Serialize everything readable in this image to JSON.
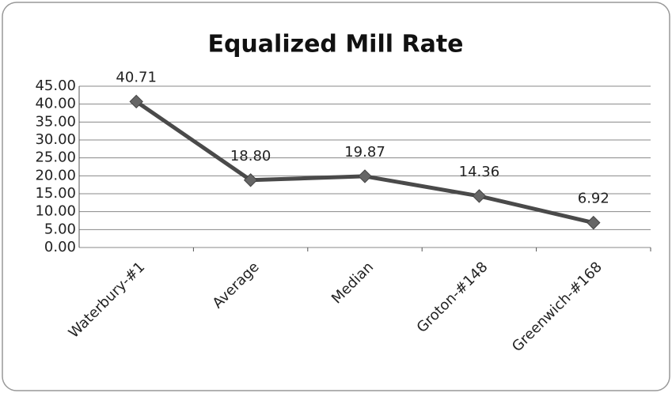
{
  "chart_data": {
    "type": "line",
    "title": "Equalized Mill Rate",
    "categories": [
      "Waterbury-#1",
      "Average",
      "Median",
      "Groton-#148",
      "Greenwich-#168"
    ],
    "values": [
      40.71,
      18.8,
      19.87,
      14.36,
      6.92
    ],
    "value_labels": [
      "40.71",
      "18.80",
      "19.87",
      "14.36",
      "6.92"
    ],
    "color": "#4a4a4a",
    "ylim": [
      0,
      45
    ],
    "yticks": [
      {
        "value": 0,
        "label": "0.00"
      },
      {
        "value": 5,
        "label": "5.00"
      },
      {
        "value": 10,
        "label": "10.00"
      },
      {
        "value": 15,
        "label": "15.00"
      },
      {
        "value": 20,
        "label": "20.00"
      },
      {
        "value": 25,
        "label": "25.00"
      },
      {
        "value": 30,
        "label": "30.00"
      },
      {
        "value": 35,
        "label": "35.00"
      },
      {
        "value": 40,
        "label": "40.00"
      },
      {
        "value": 45,
        "label": "45.00"
      }
    ],
    "grid": true
  }
}
